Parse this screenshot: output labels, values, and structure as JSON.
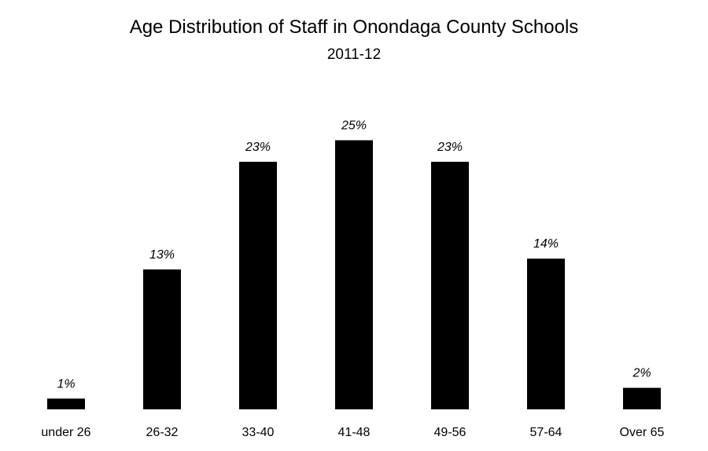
{
  "chart_data": {
    "type": "bar",
    "title": "Age Distribution of Staff in Onondaga County Schools",
    "subtitle": "2011-12",
    "categories": [
      "under 26",
      "26-32",
      "33-40",
      "41-48",
      "49-56",
      "57-64",
      "Over 65"
    ],
    "values": [
      1,
      13,
      23,
      25,
      23,
      14,
      2
    ],
    "data_labels": [
      "1%",
      "13%",
      "23%",
      "25%",
      "23%",
      "14%",
      "2%"
    ],
    "ylim": [
      0,
      30
    ],
    "grid": false,
    "legend": "none",
    "bar_color": "#000000"
  }
}
